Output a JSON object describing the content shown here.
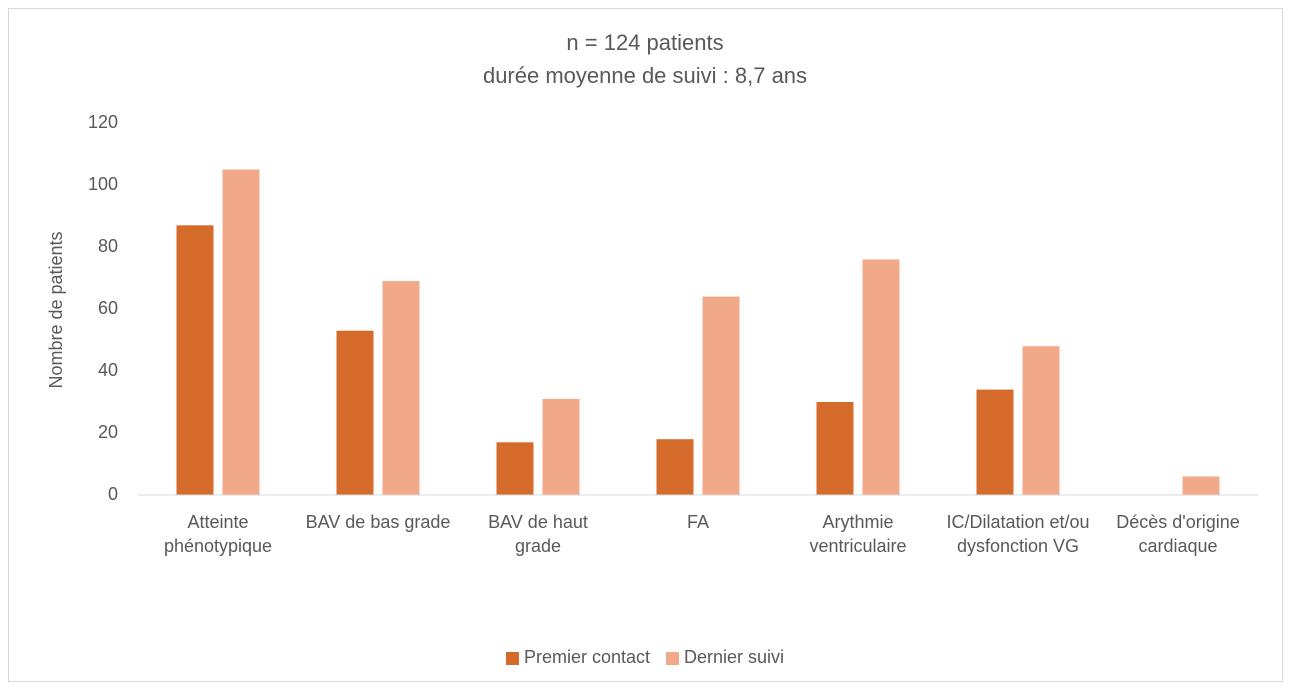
{
  "chart_data": {
    "type": "bar",
    "title": "n = 124 patients",
    "subtitle": "durée moyenne de suivi : 8,7 ans",
    "y_label": "Nombre de patients",
    "categories": [
      "Atteinte phénotypique",
      "BAV de bas grade",
      "BAV de haut grade",
      "FA",
      "Arythmie ventriculaire",
      "IC/Dilatation et/ou dysfonction VG",
      "Décès d'origine cardiaque"
    ],
    "series": [
      {
        "name": "Premier contact",
        "color": "#d56b2b",
        "values": [
          87,
          53,
          17,
          18,
          30,
          34,
          0
        ]
      },
      {
        "name": "Dernier suivi",
        "color": "#f2a98a",
        "values": [
          105,
          69,
          31,
          64,
          76,
          48,
          6
        ]
      }
    ],
    "ylim": [
      0,
      120
    ],
    "yticks": [
      0,
      20,
      40,
      60,
      80,
      100,
      120
    ],
    "grid": false,
    "legend": "bottom"
  }
}
